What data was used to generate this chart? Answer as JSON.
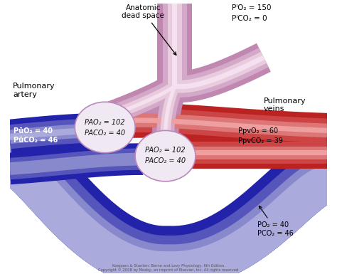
{
  "bg_color": "#ffffff",
  "figsize": [
    4.74,
    3.85
  ],
  "dpi": 100,
  "labels": {
    "anatomic_dead_space": "Anatomic\ndead space",
    "pulmonary_artery": "Pulmonary\nartery",
    "pulmonary_veins": "Pulmonary\nveins",
    "pvo2": "PūO₂ = 40",
    "pvco2": "PūCO₂ = 46",
    "pio2": "PᴵO₂ = 150",
    "pico2": "PᴵCO₂ = 0",
    "ppvo2": "PpvO₂ = 60",
    "ppvco2": "PpvCO₂ = 39",
    "po2_bottom": "PO₂ = 40",
    "pco2_bottom": "PCO₂ = 46",
    "alv_t1": "PAO₂ = 102",
    "alv_t2": "PACO₂ = 40",
    "alv_b1": "PAO₂ = 102",
    "alv_b2": "PACO₂ = 40",
    "copyright": "Koeppen & Stanton: Berne and Levy Physiology, 6th Edition.\nCopyright © 2008 by Mosby, an imprint of Elsevier, Inc. All rights reserved"
  },
  "colors": {
    "blue1": "#2222aa",
    "blue2": "#5555bb",
    "blue3": "#8888cc",
    "blue4": "#aaaadd",
    "blue5": "#ccccee",
    "purple1": "#7755aa",
    "purple2": "#9977bb",
    "purple3": "#bb99cc",
    "purple4": "#ddbbdd",
    "red1": "#bb2222",
    "red2": "#cc4444",
    "red3": "#dd7777",
    "red4": "#eea0a0",
    "red5": "#f5cccc",
    "airway1": "#c088b0",
    "airway2": "#d4a8c8",
    "airway3": "#e8ccde",
    "airway4": "#f4e0ee",
    "circle_fill": "#f0e8f2",
    "circle_edge": "#bb88bb"
  }
}
